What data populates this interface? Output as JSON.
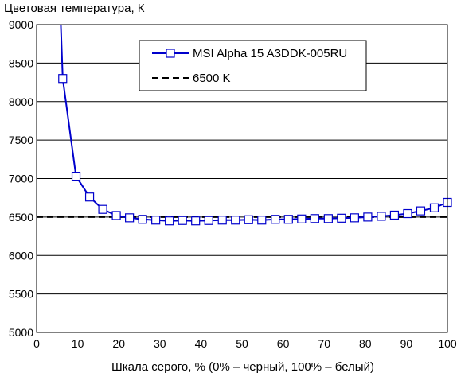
{
  "chart_data": {
    "type": "line",
    "title": "",
    "ylabel": "Цветовая температура, К",
    "xlabel": "Шкала серого, % (0% – черный, 100% – белый)",
    "xlim": [
      0,
      100
    ],
    "ylim": [
      5000,
      9000
    ],
    "x_ticks": [
      0,
      10,
      20,
      30,
      40,
      50,
      60,
      70,
      80,
      90,
      100
    ],
    "y_ticks": [
      5000,
      5500,
      6000,
      6500,
      7000,
      7500,
      8000,
      8500,
      9000
    ],
    "grid": "horizontal",
    "legend_position": "top-center",
    "series": [
      {
        "name": "MSI Alpha 15 A3DDK-005RU",
        "color": "#0000cc",
        "marker": "square",
        "line_style": "solid",
        "points_x": [
          6.35,
          9.6,
          12.9,
          16.1,
          19.4,
          22.6,
          25.8,
          29.0,
          32.3,
          35.5,
          38.7,
          41.9,
          45.2,
          48.4,
          51.6,
          54.8,
          58.1,
          61.3,
          64.5,
          67.7,
          71.0,
          74.2,
          77.4,
          80.6,
          83.9,
          87.1,
          90.3,
          93.5,
          96.8,
          100
        ],
        "points_y": [
          8300,
          7030,
          6760,
          6600,
          6520,
          6490,
          6470,
          6460,
          6450,
          6455,
          6450,
          6455,
          6460,
          6460,
          6465,
          6460,
          6470,
          6470,
          6475,
          6480,
          6480,
          6485,
          6490,
          6500,
          6510,
          6525,
          6545,
          6580,
          6620,
          6690
        ],
        "line_extends_above_top_at_x": 5.9
      },
      {
        "name": "6500 K",
        "color": "#000000",
        "line_style": "dashed",
        "constant_y": 6500
      }
    ]
  }
}
